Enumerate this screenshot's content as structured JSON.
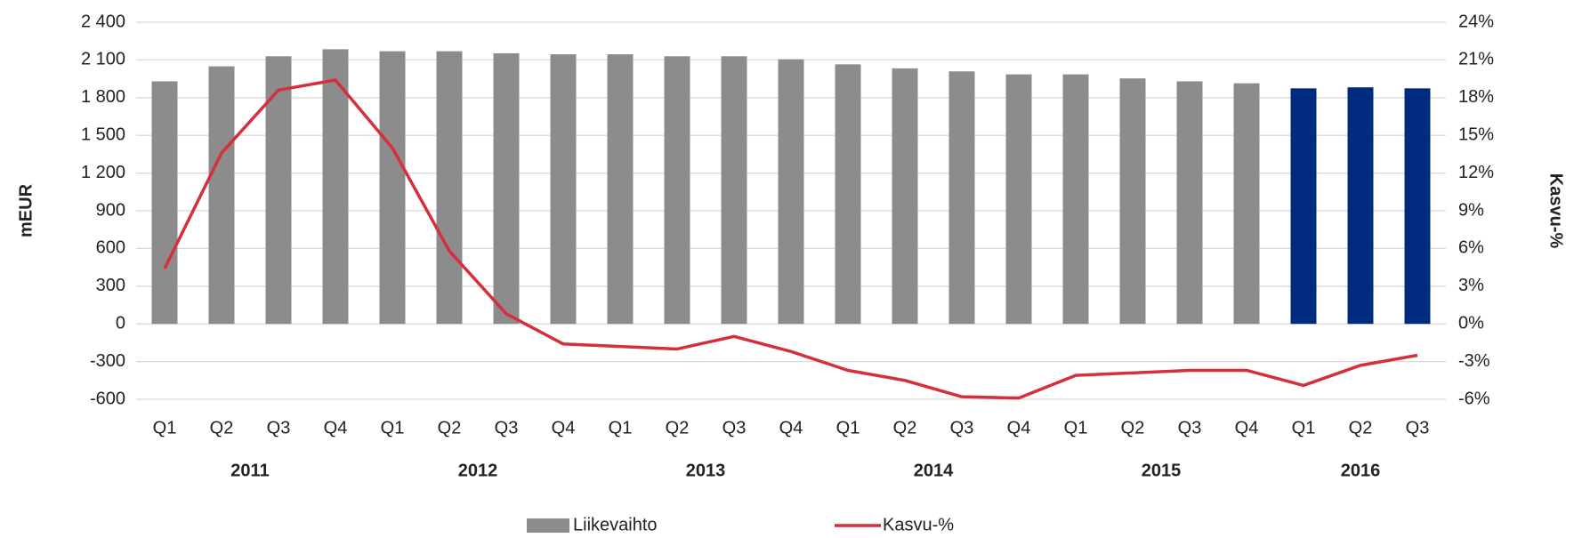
{
  "chart_data": {
    "type": "bar-line",
    "categories": [
      "Q1",
      "Q2",
      "Q3",
      "Q4",
      "Q1",
      "Q2",
      "Q3",
      "Q4",
      "Q1",
      "Q2",
      "Q3",
      "Q4",
      "Q1",
      "Q2",
      "Q3",
      "Q4",
      "Q1",
      "Q2",
      "Q3",
      "Q4",
      "Q1",
      "Q2",
      "Q3"
    ],
    "years": [
      {
        "label": "2011",
        "quarters": 4
      },
      {
        "label": "2012",
        "quarters": 4
      },
      {
        "label": "2013",
        "quarters": 4
      },
      {
        "label": "2014",
        "quarters": 4
      },
      {
        "label": "2015",
        "quarters": 4
      },
      {
        "label": "2016",
        "quarters": 3
      }
    ],
    "y_label": "mEUR",
    "y2_label": "Kasvu-%",
    "series": [
      {
        "name": "Liikevaihto",
        "type": "bar",
        "color": "#8c8c8c",
        "colors": [
          "#8c8c8c",
          "#8c8c8c",
          "#8c8c8c",
          "#8c8c8c",
          "#8c8c8c",
          "#8c8c8c",
          "#8c8c8c",
          "#8c8c8c",
          "#8c8c8c",
          "#8c8c8c",
          "#8c8c8c",
          "#8c8c8c",
          "#8c8c8c",
          "#8c8c8c",
          "#8c8c8c",
          "#8c8c8c",
          "#8c8c8c",
          "#8c8c8c",
          "#8c8c8c",
          "#8c8c8c",
          "#002b7f",
          "#002b7f",
          "#002b7f"
        ],
        "values": [
          1930,
          2049,
          2129,
          2185,
          2169,
          2169,
          2153,
          2145,
          2145,
          2129,
          2129,
          2105,
          2065,
          2033,
          2009,
          1985,
          1985,
          1953,
          1930,
          1914,
          1874,
          1882,
          1874
        ]
      },
      {
        "name": "Kasvu-%",
        "type": "line",
        "axis": "y2",
        "color": "#d62f3c",
        "values": [
          4.4,
          13.6,
          18.6,
          19.4,
          14.0,
          5.8,
          0.8,
          -1.6,
          -1.8,
          -2.0,
          -1.0,
          -2.2,
          -3.7,
          -4.5,
          -5.8,
          -5.9,
          -4.1,
          -3.9,
          -3.7,
          -3.7,
          -4.9,
          -3.3,
          -2.5
        ]
      }
    ],
    "ylim": [
      -600,
      2400
    ],
    "yticks": [
      {
        "value": 2400,
        "label": "2 400"
      },
      {
        "value": 2100,
        "label": "2 100"
      },
      {
        "value": 1800,
        "label": "1 800"
      },
      {
        "value": 1500,
        "label": "1 500"
      },
      {
        "value": 1200,
        "label": "1 200"
      },
      900,
      600,
      300,
      0,
      -300,
      -600
    ],
    "y2lim": [
      -6,
      24
    ],
    "y2ticks": [
      {
        "value": 24,
        "label": "24%"
      },
      {
        "value": 21,
        "label": "21%"
      },
      {
        "value": 18,
        "label": "18%"
      },
      {
        "value": 15,
        "label": "15%"
      },
      {
        "value": 12,
        "label": "12%"
      },
      {
        "value": 9,
        "label": "9%"
      },
      {
        "value": 6,
        "label": "6%"
      },
      {
        "value": 3,
        "label": "3%"
      },
      {
        "value": 0,
        "label": "0%"
      },
      {
        "value": -3,
        "label": "-3%"
      },
      {
        "value": -6,
        "label": "-6%"
      }
    ],
    "grid": true
  }
}
